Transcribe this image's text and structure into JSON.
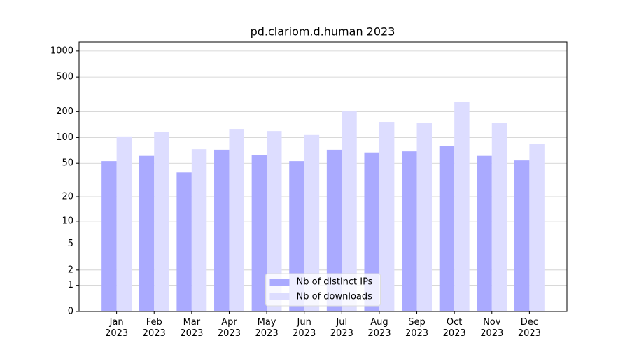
{
  "chart_data": {
    "type": "bar",
    "title": "pd.clariom.d.human 2023",
    "categories": [
      "Jan\n2023",
      "Feb\n2023",
      "Mar\n2023",
      "Apr\n2023",
      "May\n2023",
      "Jun\n2023",
      "Jul\n2023",
      "Aug\n2023",
      "Sep\n2023",
      "Oct\n2023",
      "Nov\n2023",
      "Dec\n2023"
    ],
    "series": [
      {
        "name": "Nb of distinct IPs",
        "color": "#aaaaff",
        "values": [
          53,
          61,
          39,
          72,
          62,
          53,
          72,
          67,
          69,
          80,
          61,
          54
        ]
      },
      {
        "name": "Nb of downloads",
        "color": "#ddddff",
        "values": [
          103,
          117,
          73,
          126,
          119,
          107,
          201,
          152,
          147,
          257,
          149,
          84
        ]
      }
    ],
    "yscale": "log1p",
    "ylim": [
      0,
      1270
    ],
    "yticks": [
      0,
      1,
      2,
      5,
      10,
      20,
      50,
      100,
      200,
      500,
      1000
    ],
    "grid": true,
    "legend": "lower center"
  }
}
